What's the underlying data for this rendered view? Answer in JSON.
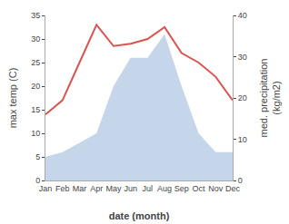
{
  "chart_data": {
    "type": "line",
    "categories": [
      "Jan",
      "Feb",
      "Mar",
      "Apr",
      "May",
      "Jun",
      "Jul",
      "Aug",
      "Sep",
      "Oct",
      "Nov",
      "Dec"
    ],
    "series": [
      {
        "type": "area",
        "color": "#c5d5ea",
        "values": [
          5,
          6,
          8,
          10,
          20,
          26,
          26,
          31,
          20,
          10,
          6,
          6
        ]
      },
      {
        "type": "line",
        "color": "#d9534f",
        "values": [
          14,
          17,
          25,
          33,
          28.5,
          29,
          30,
          32.5,
          27,
          25,
          22,
          17
        ]
      }
    ],
    "xlabel": "date (month)",
    "ylabel": "max temp (C)",
    "y2label": "med. precipitation\n(kg/m2)",
    "ylim": [
      0,
      35
    ],
    "yticks": [
      0,
      5,
      10,
      15,
      20,
      25,
      30,
      35
    ],
    "y2lim": [
      0,
      40
    ],
    "y2ticks": [
      0,
      10,
      20,
      30,
      40
    ],
    "grid": false
  }
}
